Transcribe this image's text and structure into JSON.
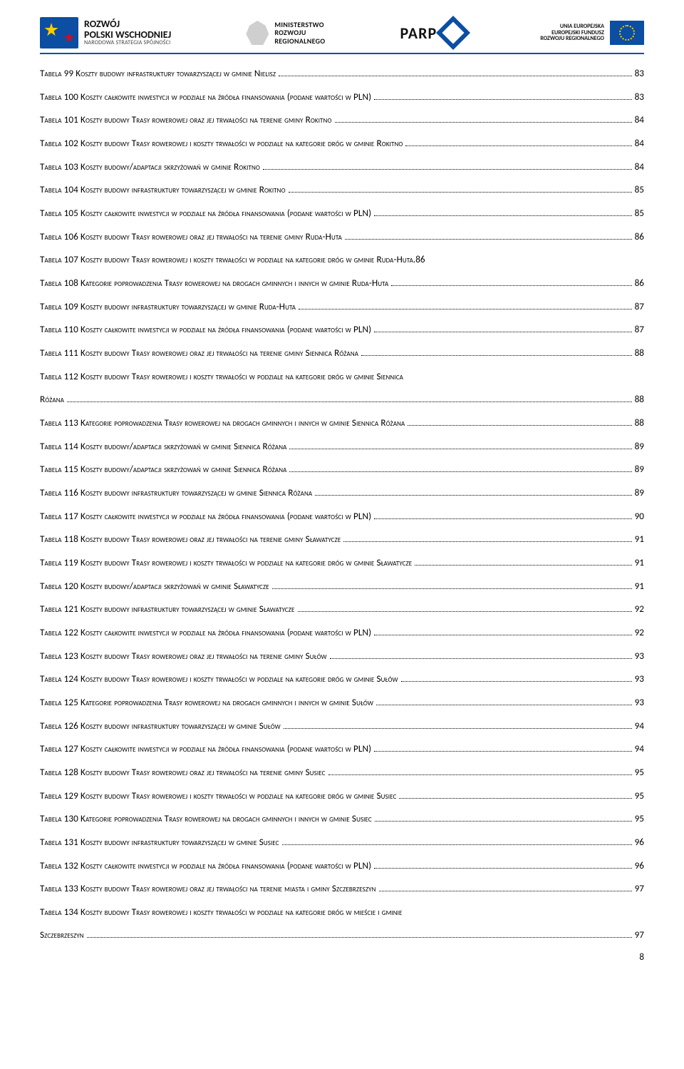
{
  "header": {
    "rozwoj": {
      "line1": "ROZWÓJ",
      "line2": "POLSKI WSCHODNIEJ",
      "line3": "NARODOWA STRATEGIA SPÓJNOŚCI"
    },
    "ministerstwo": {
      "line1": "MINISTERSTWO",
      "line2": "ROZWOJU",
      "line3": "REGIONALNEGO"
    },
    "parp": {
      "label": "PARP"
    },
    "eu": {
      "line1": "UNIA EUROPEJSKA",
      "line2": "EUROPEJSKI FUNDUSZ",
      "line3": "ROZWOJU REGIONALNEGO"
    }
  },
  "toc": [
    {
      "label": "Tabela 99 Koszty budowy infrastruktury towarzyszącej w gminie Nielisz",
      "page": "83"
    },
    {
      "label": "Tabela 100 Koszty całkowite inwestycji w podziale na źródła finansowania (podane wartości w PLN)",
      "page": "83"
    },
    {
      "label": "Tabela 101 Koszty budowy Trasy rowerowej oraz jej trwałości na terenie gminy Rokitno",
      "page": "84"
    },
    {
      "label": "Tabela 102 Koszty budowy Trasy rowerowej i koszty trwałości w podziale na kategorie dróg w gminie Rokitno",
      "page": "84"
    },
    {
      "label": "Tabela 103 Koszty budowy/adaptacji skrzyżowań w gminie Rokitno",
      "page": "84"
    },
    {
      "label": "Tabela 104 Koszty budowy infrastruktury towarzyszącej w gminie Rokitno",
      "page": "85"
    },
    {
      "label": "Tabela 105 Koszty całkowite inwestycji w podziale na źródła finansowania (podane wartości w PLN)",
      "page": "85"
    },
    {
      "label": "Tabela 106 Koszty budowy Trasy rowerowej oraz jej trwałości na terenie gminy Ruda-Huta",
      "page": "86"
    },
    {
      "label": "Tabela 107 Koszty budowy Trasy rowerowej i koszty trwałości w podziale na kategorie dróg w gminie Ruda-Huta",
      "page": "86",
      "nodots": true
    },
    {
      "label": "Tabela 108 Kategorie poprowadzenia Trasy rowerowej na drogach gminnych i innych w gminie Ruda-Huta",
      "page": "86"
    },
    {
      "label": "Tabela 109 Koszty budowy infrastruktury towarzyszącej w gminie Ruda-Huta",
      "page": "87"
    },
    {
      "label": "Tabela 110 Koszty całkowite inwestycji w podziale na źródła finansowania (podane wartości w PLN)",
      "page": "87"
    },
    {
      "label": "Tabela 111 Koszty budowy Trasy rowerowej oraz jej trwałości na terenie gminy Siennica Różana",
      "page": "88"
    },
    {
      "label": "Tabela 112 Koszty budowy Trasy rowerowej i koszty trwałości w podziale na kategorie dróg w gminie Siennica",
      "cont": "Różana",
      "page": "88"
    },
    {
      "label": "Tabela 113 Kategorie poprowadzenia Trasy rowerowej na drogach gminnych i innych w gminie Siennica Różana",
      "page": "88"
    },
    {
      "label": "Tabela 114 Koszty budowy/adaptacji skrzyżowań w gminie Siennica Różana",
      "page": "89"
    },
    {
      "label": "Tabela 115 Koszty budowy/adaptacji skrzyżowań w gminie Siennica Różana",
      "page": "89"
    },
    {
      "label": "Tabela 116 Koszty budowy infrastruktury towarzyszącej w gminie Siennica Różana",
      "page": "89"
    },
    {
      "label": "Tabela 117 Koszty całkowite inwestycji w podziale na źródła finansowania (podane wartości w PLN)",
      "page": "90"
    },
    {
      "label": "Tabela 118 Koszty budowy Trasy rowerowej oraz jej trwałości na terenie gminy Sławatycze",
      "page": "91"
    },
    {
      "label": "Tabela 119 Koszty budowy Trasy rowerowej i koszty trwałości w podziale na kategorie dróg w gminie Sławatycze",
      "page": "91",
      "tight": true
    },
    {
      "label": "Tabela 120 Koszty budowy/adaptacji skrzyżowań w gminie Sławatycze",
      "page": "91"
    },
    {
      "label": "Tabela 121 Koszty budowy infrastruktury towarzyszącej w gminie Sławatycze",
      "page": "92"
    },
    {
      "label": "Tabela 122 Koszty całkowite inwestycji w podziale na źródła finansowania (podane wartości w PLN)",
      "page": "92"
    },
    {
      "label": "Tabela 123 Koszty budowy Trasy rowerowej oraz jej trwałości na terenie gminy Sułów",
      "page": "93"
    },
    {
      "label": "Tabela 124 Koszty budowy Trasy rowerowej i koszty trwałości w podziale na kategorie dróg w gminie Sułów",
      "page": "93"
    },
    {
      "label": "Tabela 125 Kategorie poprowadzenia Trasy rowerowej na drogach gminnych i innych w gminie Sułów",
      "page": "93"
    },
    {
      "label": "Tabela 126 Koszty budowy infrastruktury towarzyszącej w gminie Sułów",
      "page": "94"
    },
    {
      "label": "Tabela 127 Koszty całkowite inwestycji w podziale na źródła finansowania (podane wartości w PLN)",
      "page": "94"
    },
    {
      "label": "Tabela 128 Koszty budowy Trasy rowerowej oraz jej trwałości na terenie gminy Susiec",
      "page": "95"
    },
    {
      "label": "Tabela 129 Koszty budowy Trasy rowerowej i koszty trwałości w podziale na kategorie dróg w gminie Susiec",
      "page": "95"
    },
    {
      "label": "Tabela 130 Kategorie poprowadzenia Trasy rowerowej na drogach gminnych i innych w gminie Susiec",
      "page": "95"
    },
    {
      "label": "Tabela 131 Koszty budowy infrastruktury towarzyszącej w gminie Susiec",
      "page": "96"
    },
    {
      "label": "Tabela 132 Koszty całkowite inwestycji w podziale na źródła finansowania (podane wartości w PLN)",
      "page": "96"
    },
    {
      "label": "Tabela 133 Koszty budowy Trasy rowerowej oraz jej trwałości na terenie miasta i gminy Szczebrzeszyn",
      "page": "97"
    },
    {
      "label": "Tabela 134 Koszty budowy Trasy rowerowej i koszty trwałości w podziale na kategorie dróg w mieście i gminie",
      "cont": "Szczebrzeszyn",
      "page": "97"
    }
  ],
  "pageNumber": "8"
}
